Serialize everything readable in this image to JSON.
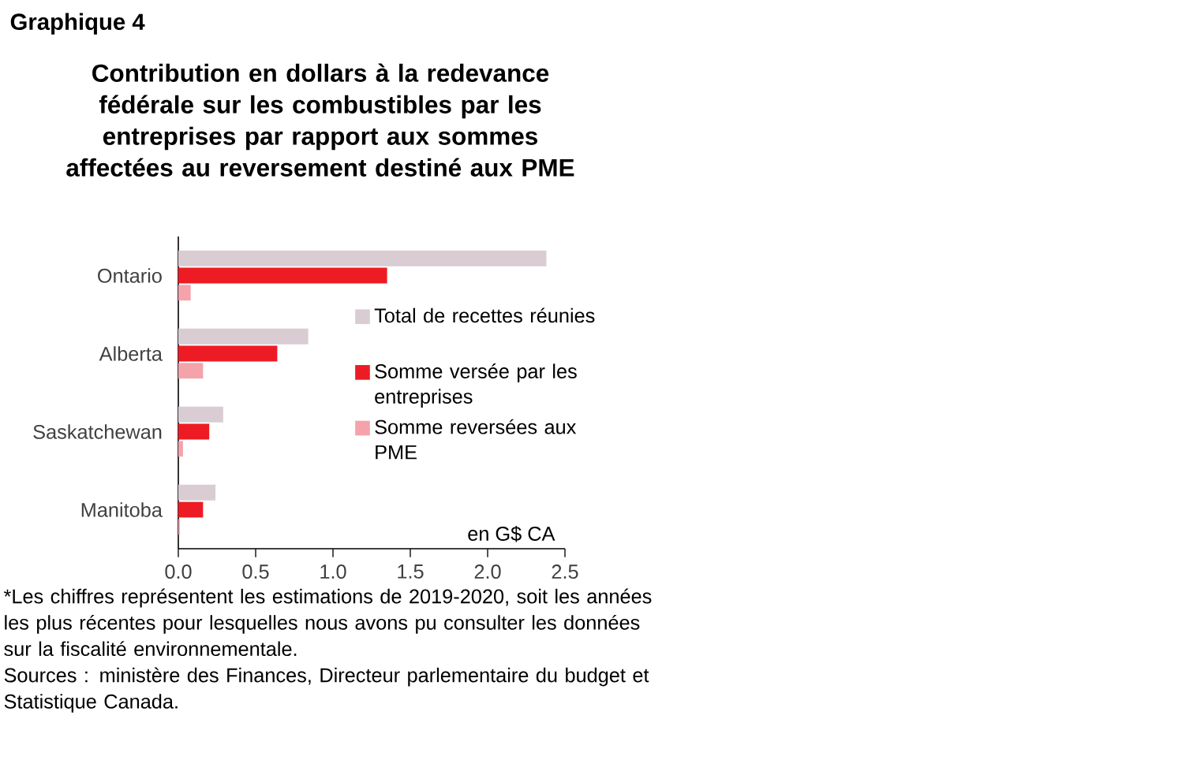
{
  "chart_data": {
    "type": "bar",
    "orientation": "horizontal",
    "title": "Contribution en dollars à la redevance fédérale sur les combustibles par les entreprises par rapport aux sommes affectées au reversement destiné aux PME",
    "categories": [
      "Ontario",
      "Alberta",
      "Saskatchewan",
      "Manitoba"
    ],
    "series": [
      {
        "name": "Total de recettes réunies",
        "color": "#d9ccd3",
        "values": [
          2.38,
          0.84,
          0.29,
          0.24
        ]
      },
      {
        "name": "Somme versée par les entreprises",
        "color": "#ed1c24",
        "values": [
          1.35,
          0.64,
          0.2,
          0.16
        ]
      },
      {
        "name": "Somme reversées aux PME",
        "color": "#f4a3ab",
        "values": [
          0.08,
          0.16,
          0.03,
          0.01
        ]
      }
    ],
    "xlim": [
      0,
      2.5
    ],
    "xticks": [
      {
        "value": 0,
        "label": "0.0"
      },
      0.5,
      {
        "value": 1,
        "label": "1.0"
      },
      1.5,
      {
        "value": 2,
        "label": "2.0"
      },
      2.5
    ],
    "xlabel": "en G$ CA",
    "legend": "right",
    "grid": false,
    "annotations": [
      "Graphique 4",
      "*Les chiffres représentent les estimations de 2019-2020, soit les années les plus récentes pour lesquelles nous avons pu consulter les données sur la fiscalité environnementale.",
      "Sources : ministère des Finances, Directeur parlementaire du budget et Statistique Canada."
    ]
  }
}
